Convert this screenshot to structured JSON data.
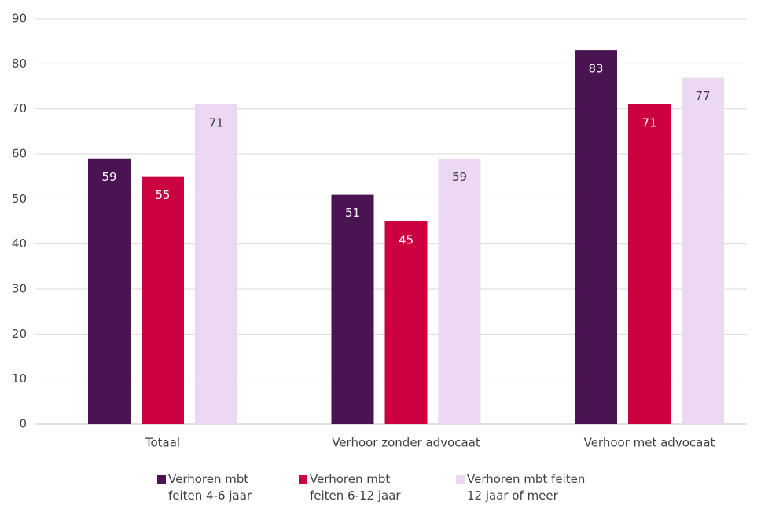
{
  "chart_data": {
    "type": "bar",
    "categories": [
      "Totaal",
      "Verhoor zonder advocaat",
      "Verhoor met advocaat"
    ],
    "series": [
      {
        "name": "Verhoren mbt feiten 4-6 jaar",
        "color": "#4a1352",
        "values": [
          59,
          51,
          83
        ]
      },
      {
        "name": "Verhoren mbt feiten 6-12 jaar",
        "color": "#cc0040",
        "values": [
          55,
          45,
          71
        ]
      },
      {
        "name": "Verhoren mbt feiten 12 jaar of meer",
        "color": "#ecd8f2",
        "values": [
          71,
          59,
          77
        ]
      }
    ],
    "ylim": [
      0,
      90
    ],
    "yticks": [
      0,
      10,
      20,
      30,
      40,
      50,
      60,
      70,
      80,
      90
    ],
    "grid": true
  }
}
